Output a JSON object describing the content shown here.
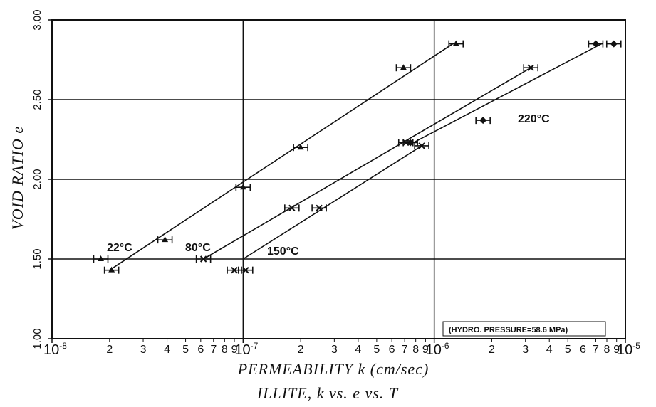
{
  "chart_data": {
    "type": "scatter",
    "title": "ILLITE, k vs. e vs. T",
    "xlabel": "PERMEABILITY k (cm/sec)",
    "ylabel": "VOID RATIO e",
    "x_scale": "log",
    "xlim": [
      1e-08,
      1e-05
    ],
    "ylim": [
      1.0,
      3.0
    ],
    "y_ticks": [
      "1.00",
      "1.50",
      "2.00",
      "2.50",
      "3.00"
    ],
    "x_decade_labels": [
      {
        "base": "10",
        "exp": "-8",
        "value": 1e-08
      },
      {
        "base": "10",
        "exp": "-7",
        "value": 1e-07
      },
      {
        "base": "10",
        "exp": "-6",
        "value": 1e-06
      },
      {
        "base": "10",
        "exp": "-5",
        "value": 1e-05
      }
    ],
    "x_minor_labels": [
      "2",
      "3",
      "4",
      "5",
      "6",
      "7",
      "8",
      "9"
    ],
    "grid": "major",
    "annotation": "(HYDRO. PRESSURE=58.6 MPa)",
    "series": [
      {
        "name": "22°C",
        "marker": "triangle",
        "points": [
          [
            2.05e-08,
            1.43
          ],
          [
            1.8e-08,
            1.5
          ],
          [
            3.9e-08,
            1.62
          ],
          [
            1e-07,
            1.95
          ],
          [
            2e-07,
            2.2
          ],
          [
            6.9e-07,
            2.7
          ],
          [
            1.3e-06,
            2.85
          ]
        ],
        "fit": [
          [
            2e-08,
            1.43
          ],
          [
            1.25e-06,
            2.85
          ]
        ]
      },
      {
        "name": "80°C",
        "marker": "x",
        "points": [
          [
            6.2e-08,
            1.5
          ],
          [
            9e-08,
            1.43
          ],
          [
            1.8e-07,
            1.82
          ],
          [
            7.1e-07,
            2.23
          ],
          [
            3.2e-06,
            2.7
          ]
        ],
        "fit": [
          [
            6.2e-08,
            1.5
          ],
          [
            3.2e-06,
            2.7
          ]
        ]
      },
      {
        "name": "150°C",
        "marker": "x",
        "points": [
          [
            1.03e-07,
            1.43
          ],
          [
            2.5e-07,
            1.82
          ],
          [
            8.6e-07,
            2.21
          ]
        ],
        "fit": [
          [
            1e-07,
            1.5
          ],
          [
            8.6e-07,
            2.21
          ]
        ]
      },
      {
        "name": "220°C",
        "marker": "diamond",
        "points": [
          [
            1.8e-06,
            2.37
          ],
          [
            7.5e-07,
            2.23
          ],
          [
            7e-06,
            2.85
          ],
          [
            8.7e-06,
            2.85
          ]
        ],
        "fit": [
          [
            7.5e-07,
            2.22
          ],
          [
            7.5e-06,
            2.85
          ]
        ]
      }
    ]
  }
}
